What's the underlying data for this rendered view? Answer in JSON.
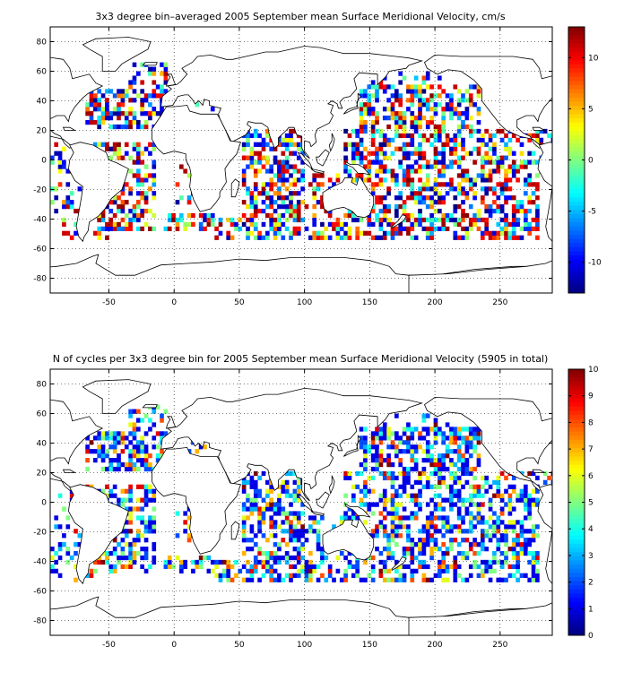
{
  "chart_data": [
    {
      "type": "heatmap",
      "title": "3x3 degree bin–averaged 2005 September mean Surface Meridional Velocity, cm/s",
      "xlim": [
        -95,
        290
      ],
      "ylim": [
        -90,
        90
      ],
      "x_ticks": [
        -50,
        0,
        50,
        100,
        150,
        200,
        250
      ],
      "y_ticks": [
        80,
        60,
        40,
        20,
        0,
        -20,
        -40,
        -60,
        -80
      ],
      "colorbar": {
        "range": [
          -13,
          13
        ],
        "ticks": [
          10,
          5,
          0,
          -5,
          -10
        ]
      },
      "grid": true,
      "colormap": "jet",
      "bin_deg": 3,
      "seed": 17
    },
    {
      "type": "heatmap",
      "title": "N of cycles per 3x3 degree bin for 2005 September mean Surface Meridional Velocity (5905 in total)",
      "xlim": [
        -95,
        290
      ],
      "ylim": [
        -90,
        90
      ],
      "x_ticks": [
        -50,
        0,
        50,
        100,
        150,
        200,
        250
      ],
      "y_ticks": [
        80,
        60,
        40,
        20,
        0,
        -20,
        -40,
        -60,
        -80
      ],
      "colorbar": {
        "range": [
          0,
          10
        ],
        "ticks": [
          10,
          9,
          8,
          7,
          6,
          5,
          4,
          3,
          2,
          1,
          0
        ]
      },
      "grid": true,
      "colormap": "jet",
      "bin_deg": 3,
      "seed": 91
    }
  ]
}
